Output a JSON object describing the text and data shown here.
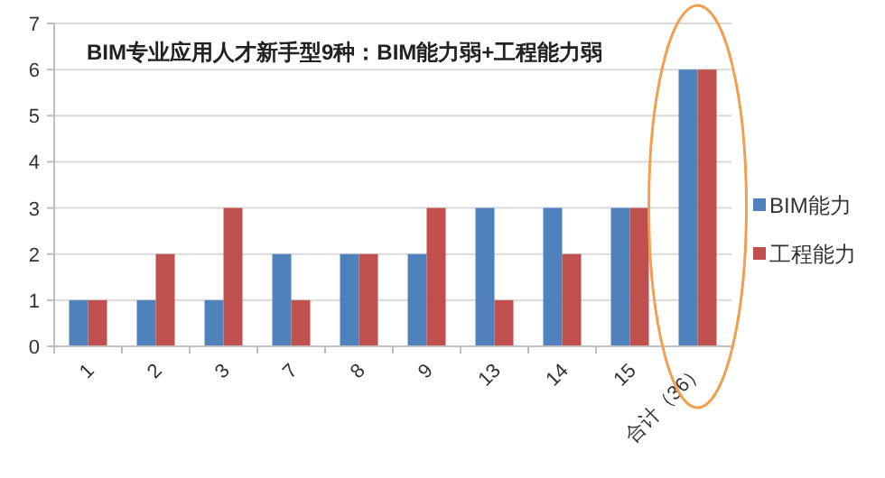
{
  "chart_data": {
    "type": "bar",
    "title": "BIM专业应用人才新手型9种：BIM能力弱+工程能力弱",
    "categories": [
      "1",
      "2",
      "3",
      "7",
      "8",
      "9",
      "13",
      "14",
      "15",
      "合计（36）"
    ],
    "series": [
      {
        "name": "BIM能力",
        "color": "#4f81bd",
        "values": [
          1,
          1,
          1,
          2,
          2,
          2,
          3,
          3,
          3,
          6
        ]
      },
      {
        "name": "工程能力",
        "color": "#c0504d",
        "values": [
          1,
          2,
          3,
          1,
          2,
          3,
          1,
          2,
          3,
          6
        ]
      }
    ],
    "ylim": [
      0,
      7
    ],
    "yticks": [
      0,
      1,
      2,
      3,
      4,
      5,
      6,
      7
    ],
    "grid": "y",
    "legend": "right"
  }
}
